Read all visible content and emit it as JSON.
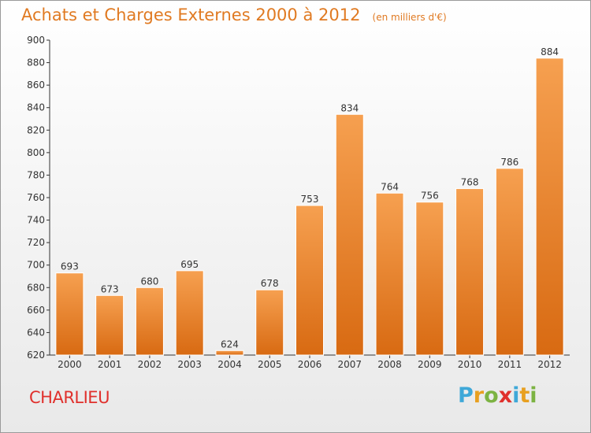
{
  "chart_data": {
    "type": "bar",
    "title": "Achats et Charges Externes 2000 à 2012",
    "unit": "(en milliers d'€)",
    "categories": [
      "2000",
      "2001",
      "2002",
      "2003",
      "2004",
      "2005",
      "2006",
      "2007",
      "2008",
      "2009",
      "2010",
      "2011",
      "2012"
    ],
    "values": [
      693,
      673,
      680,
      695,
      624,
      678,
      753,
      834,
      764,
      756,
      768,
      786,
      884
    ],
    "ylim": [
      620,
      900
    ],
    "yticks": [
      620,
      640,
      660,
      680,
      700,
      720,
      740,
      760,
      780,
      800,
      820,
      840,
      860,
      880,
      900
    ],
    "grid": false,
    "bar_color": "#f0882e",
    "data_labels": true
  },
  "footer": {
    "commune": "CHARLIEU",
    "brand": "Proxiti",
    "brand_colors": [
      "#3fa8d8",
      "#e8a020",
      "#7cb342",
      "#e0302c",
      "#3fa8d8",
      "#e8a020",
      "#7cb342"
    ]
  }
}
